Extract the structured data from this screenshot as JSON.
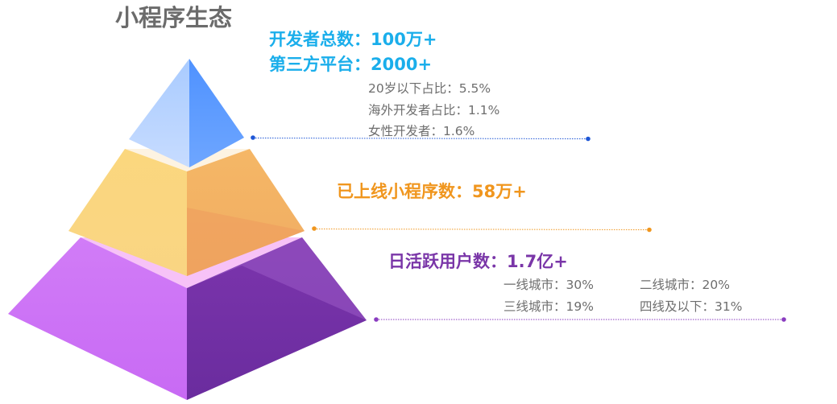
{
  "title": "小程序生态",
  "colors": {
    "blue": "#1aaeeb",
    "orange": "#f0961e",
    "purple": "#7a36a8",
    "gray_text": "#6e6e6e",
    "title_gray": "#6b6b6b",
    "blue_dot": "#1e56d6",
    "orange_dot": "#f0961e",
    "purple_dot": "#8a3cc0"
  },
  "tiers": {
    "top": {
      "headline_1": "开发者总数：100万+",
      "headline_2": "第三方平台：2000+",
      "stats": [
        "20岁以下占比：5.5%",
        "海外开发者占比：1.1%",
        "女性开发者：1.6%"
      ]
    },
    "middle": {
      "headline": "已上线小程序数：58万+"
    },
    "bottom": {
      "headline": "日活跃用户数：1.7亿+",
      "stats": [
        "一线城市：30%",
        "二线城市：20%",
        "三线城市：19%",
        "四线及以下：31%"
      ]
    }
  }
}
